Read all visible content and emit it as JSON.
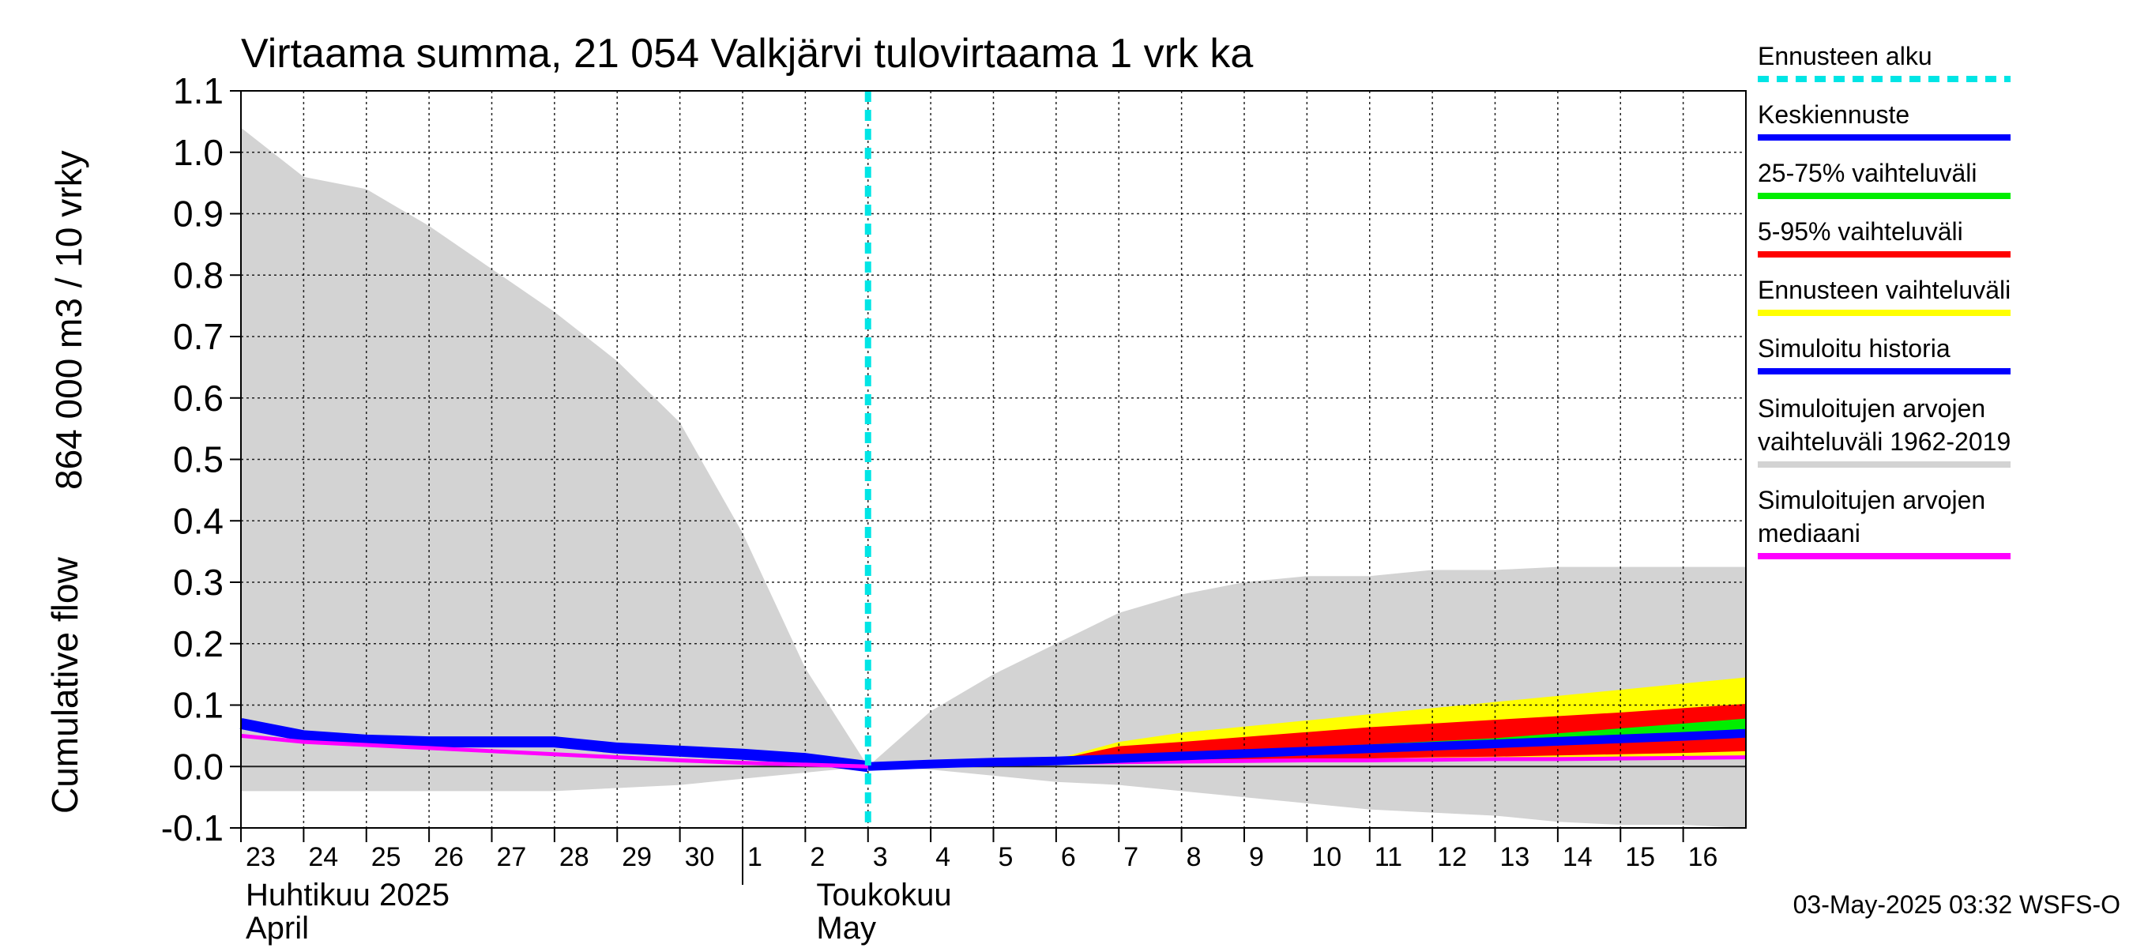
{
  "chart_data": {
    "type": "area",
    "title": "Virtaama summa, 21 054 Valkjärvi tulovirtaama 1 vrk ka",
    "ylabel_top": "864 000 m3 / 10 vrky",
    "ylabel_bottom": "Cumulative flow",
    "ylim": [
      -0.1,
      1.1
    ],
    "yticks": [
      "1.1",
      "1.0",
      "0.9",
      "0.8",
      "0.7",
      "0.6",
      "0.5",
      "0.4",
      "0.3",
      "0.2",
      "0.1",
      "0.0",
      "-0.1"
    ],
    "xlim": [
      0,
      24
    ],
    "xticks": [
      "23",
      "24",
      "25",
      "26",
      "27",
      "28",
      "29",
      "30",
      "1",
      "2",
      "3",
      "4",
      "5",
      "6",
      "7",
      "8",
      "9",
      "10",
      "11",
      "12",
      "13",
      "14",
      "15",
      "16"
    ],
    "month_labels": [
      {
        "line1": "Huhtikuu  2025",
        "line2": "April"
      },
      {
        "line1": "Toukokuu",
        "line2": "May"
      }
    ],
    "grid": true,
    "forecast_start_x": 10,
    "colors": {
      "forecast_start": "#00e5e5",
      "mean_forecast": "#0000ff",
      "p25_75": "#00ee00",
      "p5_95": "#ff0000",
      "forecast_range": "#ffff00",
      "simulated_history": "#0000ff",
      "hist_range": "#d3d3d3",
      "hist_median": "#ff00ff"
    },
    "hist_range": {
      "x": [
        0,
        1,
        2,
        3,
        4,
        5,
        6,
        7,
        8,
        9,
        10,
        11,
        12,
        13,
        14,
        15,
        16,
        17,
        18,
        19,
        20,
        21,
        22,
        23,
        24
      ],
      "upper": [
        1.04,
        0.96,
        0.94,
        0.88,
        0.81,
        0.74,
        0.66,
        0.56,
        0.38,
        0.16,
        0.0,
        0.09,
        0.15,
        0.2,
        0.25,
        0.28,
        0.3,
        0.31,
        0.31,
        0.32,
        0.32,
        0.325,
        0.325,
        0.325,
        0.325
      ],
      "lower": [
        -0.04,
        -0.04,
        -0.04,
        -0.04,
        -0.04,
        -0.04,
        -0.035,
        -0.03,
        -0.02,
        -0.01,
        0.0,
        -0.005,
        -0.015,
        -0.025,
        -0.03,
        -0.04,
        -0.05,
        -0.06,
        -0.07,
        -0.075,
        -0.08,
        -0.09,
        -0.095,
        -0.095,
        -0.1
      ]
    },
    "series": [
      {
        "name": "Simuloitu historia",
        "x": [
          0,
          1,
          2,
          3,
          4,
          5,
          6,
          7,
          8,
          9,
          10
        ],
        "values": [
          0.07,
          0.05,
          0.043,
          0.04,
          0.04,
          0.04,
          0.03,
          0.025,
          0.02,
          0.013,
          0.0
        ]
      },
      {
        "name": "Simuloitujen arvojen mediaani",
        "x": [
          0,
          1,
          2,
          3,
          4,
          5,
          6,
          7,
          8,
          9,
          10,
          11,
          12,
          13,
          14,
          15,
          16,
          17,
          18,
          19,
          20,
          21,
          22,
          23,
          24
        ],
        "values": [
          0.05,
          0.04,
          0.035,
          0.03,
          0.025,
          0.02,
          0.015,
          0.01,
          0.006,
          0.003,
          0.0,
          0.003,
          0.005,
          0.006,
          0.007,
          0.008,
          0.009,
          0.01,
          0.01,
          0.011,
          0.012,
          0.012,
          0.013,
          0.014,
          0.015
        ]
      },
      {
        "name": "Keskiennuste",
        "x": [
          10,
          11,
          12,
          13,
          14,
          15,
          16,
          17,
          18,
          19,
          20,
          21,
          22,
          23,
          24
        ],
        "values": [
          0.0,
          0.004,
          0.007,
          0.009,
          0.013,
          0.017,
          0.021,
          0.025,
          0.029,
          0.033,
          0.037,
          0.041,
          0.045,
          0.049,
          0.054
        ]
      }
    ],
    "bands": [
      {
        "name": "Ennusteen vaihteluväli",
        "x": [
          10,
          11,
          12,
          13,
          14,
          15,
          16,
          17,
          18,
          19,
          20,
          21,
          22,
          23,
          24
        ],
        "upper": [
          0.0,
          0.005,
          0.008,
          0.012,
          0.04,
          0.055,
          0.065,
          0.075,
          0.085,
          0.095,
          0.105,
          0.115,
          0.125,
          0.135,
          0.145
        ],
        "lower": [
          0.0,
          0.002,
          0.004,
          0.005,
          0.006,
          0.006,
          0.007,
          0.008,
          0.009,
          0.01,
          0.011,
          0.012,
          0.013,
          0.014,
          0.015
        ]
      },
      {
        "name": "5-95% vaihteluväli",
        "x": [
          10,
          11,
          12,
          13,
          14,
          15,
          16,
          17,
          18,
          19,
          20,
          21,
          22,
          23,
          24
        ],
        "upper": [
          0.0,
          0.005,
          0.008,
          0.011,
          0.033,
          0.04,
          0.048,
          0.056,
          0.064,
          0.07,
          0.076,
          0.082,
          0.088,
          0.095,
          0.102
        ],
        "lower": [
          0.0,
          0.003,
          0.005,
          0.007,
          0.009,
          0.01,
          0.011,
          0.012,
          0.013,
          0.015,
          0.016,
          0.018,
          0.02,
          0.022,
          0.025
        ]
      },
      {
        "name": "25-75% vaihteluväli",
        "x": [
          10,
          11,
          12,
          13,
          14,
          15,
          16,
          17,
          18,
          19,
          20,
          21,
          22,
          23,
          24
        ],
        "upper": [
          0.0,
          0.005,
          0.008,
          0.01,
          0.018,
          0.022,
          0.026,
          0.031,
          0.036,
          0.041,
          0.046,
          0.054,
          0.062,
          0.07,
          0.078
        ],
        "lower": [
          0.0,
          0.003,
          0.006,
          0.008,
          0.011,
          0.014,
          0.017,
          0.021,
          0.025,
          0.029,
          0.032,
          0.036,
          0.04,
          0.044,
          0.048
        ]
      }
    ]
  },
  "legend": [
    {
      "label": "Ennusteen alku",
      "color": "#00e5e5",
      "style": "dashed"
    },
    {
      "label": "Keskiennuste",
      "color": "#0000ff",
      "style": "solid"
    },
    {
      "label": "25-75% vaihteluväli",
      "color": "#00ee00",
      "style": "solid"
    },
    {
      "label": "5-95% vaihteluväli",
      "color": "#ff0000",
      "style": "solid"
    },
    {
      "label": "Ennusteen vaihteluväli",
      "color": "#ffff00",
      "style": "solid"
    },
    {
      "label": "Simuloitu historia",
      "color": "#0000ff",
      "style": "solid"
    },
    {
      "label": "Simuloitujen arvojen\nvaihteluväli 1962-2019",
      "color": "#d3d3d3",
      "style": "solid"
    },
    {
      "label": "Simuloitujen arvojen\nmediaani",
      "color": "#ff00ff",
      "style": "solid"
    }
  ],
  "footer": "03-May-2025 03:32 WSFS-O"
}
